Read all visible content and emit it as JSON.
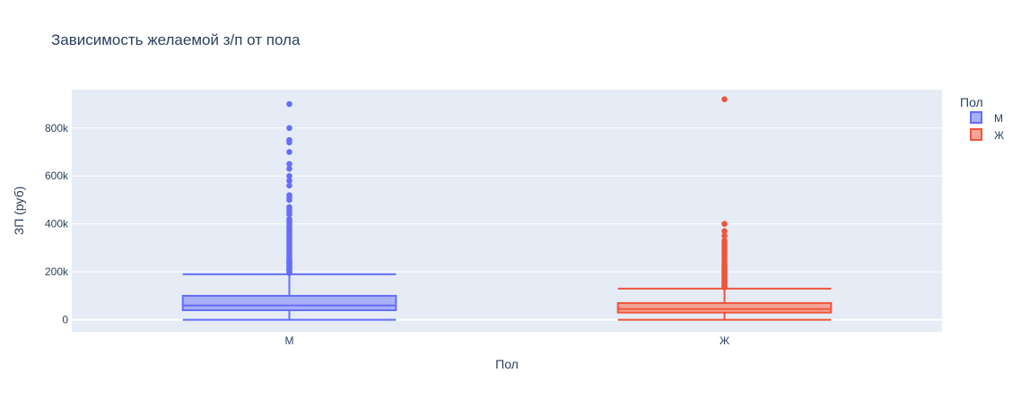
{
  "chart_data": {
    "type": "box",
    "title": "Зависимость желаемой з/п от пола",
    "xlabel": "Пол",
    "ylabel": "ЗП (руб)",
    "categories": [
      "М",
      "Ж"
    ],
    "ylim": [
      -50000,
      960000
    ],
    "yticks": [
      0,
      200000,
      400000,
      600000,
      800000
    ],
    "ytick_labels": [
      "0",
      "200k",
      "400k",
      "600k",
      "800k"
    ],
    "grid": true,
    "legend": {
      "title": "Пол",
      "placement": "top-right",
      "entries": [
        "М",
        "Ж"
      ]
    },
    "series": [
      {
        "name": "М",
        "color": "#636efa",
        "fill": "#aab0f8",
        "min": 0,
        "q1": 40000,
        "median": 60000,
        "q3": 100000,
        "upper_fence": 190000,
        "outliers": [
          195000,
          200000,
          205000,
          210000,
          215000,
          220000,
          225000,
          230000,
          235000,
          240000,
          245000,
          250000,
          260000,
          270000,
          280000,
          290000,
          300000,
          310000,
          320000,
          330000,
          340000,
          350000,
          360000,
          370000,
          380000,
          390000,
          400000,
          410000,
          420000,
          440000,
          450000,
          460000,
          470000,
          500000,
          510000,
          520000,
          560000,
          580000,
          600000,
          630000,
          650000,
          700000,
          740000,
          750000,
          800000,
          900000
        ]
      },
      {
        "name": "Ж",
        "color": "#ef553b",
        "fill": "#f3a596",
        "min": 0,
        "q1": 30000,
        "median": 45000,
        "q3": 70000,
        "upper_fence": 130000,
        "outliers": [
          135000,
          140000,
          145000,
          150000,
          155000,
          160000,
          165000,
          170000,
          175000,
          180000,
          185000,
          190000,
          195000,
          200000,
          205000,
          210000,
          215000,
          220000,
          225000,
          230000,
          240000,
          250000,
          260000,
          270000,
          280000,
          290000,
          300000,
          310000,
          320000,
          330000,
          350000,
          370000,
          400000,
          920000
        ]
      }
    ]
  }
}
